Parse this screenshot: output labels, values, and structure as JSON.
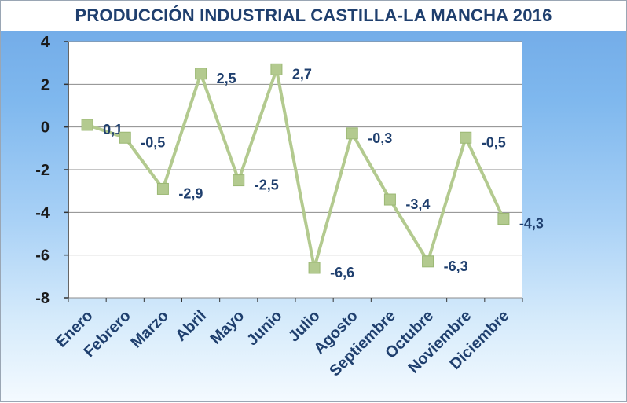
{
  "chart_data": {
    "type": "line",
    "title": "PRODUCCIÓN INDUSTRIAL CASTILLA-LA MANCHA 2016",
    "xlabel": "",
    "ylabel": "",
    "categories": [
      "Enero",
      "Febrero",
      "Marzo",
      "Abril",
      "Mayo",
      "Junio",
      "Julio",
      "Agosto",
      "Septiembre",
      "Octubre",
      "Noviembre",
      "Diciembre"
    ],
    "values": [
      0.1,
      -0.5,
      -2.9,
      2.5,
      -2.5,
      2.7,
      -6.6,
      -0.3,
      -3.4,
      -6.3,
      -0.5,
      -4.3
    ],
    "data_labels": [
      "0,1",
      "-0,5",
      "-2,9",
      "2,5",
      "-2,5",
      "2,7",
      "-6,6",
      "-0,3",
      "-3,4",
      "-6,3",
      "-0,5",
      "-4,3"
    ],
    "ylim": [
      -8,
      4
    ],
    "yticks": [
      4,
      2,
      0,
      -2,
      -4,
      -6,
      -8
    ],
    "ytick_labels": [
      "4",
      "2",
      "0",
      "-2",
      "-4",
      "-6",
      "-8"
    ],
    "grid": true,
    "legend": "none",
    "colors": {
      "line": "#b3ca8f",
      "marker": "#b3ca8f",
      "marker_edge": "#9bb874",
      "title": "#1f3f6e",
      "labels": "#1f3f6e",
      "plot_bg": "#ffffff",
      "grid": "#8c8c8c"
    }
  }
}
